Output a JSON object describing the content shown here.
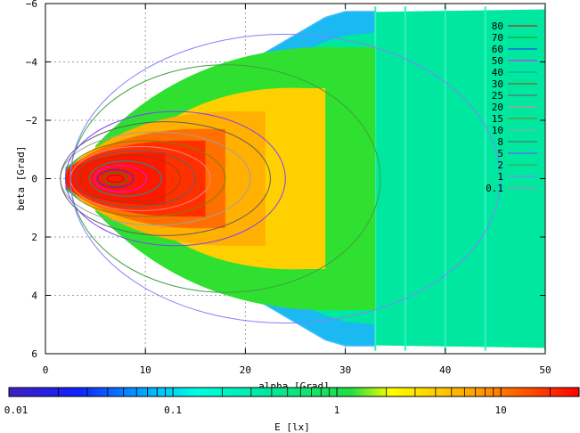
{
  "chart_data": {
    "type": "heatmap",
    "xlabel": "alpha [Grad]",
    "ylabel": "beta [Grad]",
    "colorbar_label": "E [lx]",
    "xlim": [
      0,
      50
    ],
    "ylim": [
      6,
      -6
    ],
    "x_ticks": [
      0,
      10,
      20,
      30,
      40,
      50
    ],
    "y_ticks": [
      6,
      4,
      2,
      0,
      -2,
      -4,
      -6
    ],
    "x_tick_labels": [
      "0",
      "10",
      "20",
      "30",
      "40",
      "50"
    ],
    "y_tick_labels": [
      "6",
      "4",
      "2",
      "0",
      "−2",
      "−4",
      "−6"
    ],
    "colorbar_scale": "log",
    "colorbar_range": [
      0.01,
      30
    ],
    "colorbar_ticks": [
      0.01,
      0.1,
      1,
      10
    ],
    "colorbar_tick_labels": [
      "0.01",
      "0.1",
      "1",
      "10"
    ],
    "grid": true,
    "legend_position": "top-right",
    "contour_levels": [
      "80",
      "70",
      "60",
      "50",
      "40",
      "30",
      "25",
      "20",
      "15",
      "10",
      "8",
      "5",
      "2",
      "1",
      "0.1"
    ],
    "contour_colors": [
      "#d00000",
      "#00a000",
      "#2a2aff",
      "#ff00ff",
      "#00a0a0",
      "#a04000",
      "#606060",
      "#ff8080",
      "#808000",
      "#a0a0a0",
      "#606060",
      "#8040ff",
      "#40a040",
      "#8080ff",
      "#c080c0"
    ],
    "beam": {
      "apex": [
        2,
        0
      ],
      "upper_edge": [
        [
          2,
          -0.4
        ],
        [
          10,
          -2.1
        ],
        [
          20,
          -3.9
        ],
        [
          28,
          -5.5
        ],
        [
          30,
          -5.7
        ],
        [
          50,
          -5.8
        ]
      ],
      "lower_edge": [
        [
          2,
          0.4
        ],
        [
          10,
          2.1
        ],
        [
          20,
          3.9
        ],
        [
          28,
          5.5
        ],
        [
          30,
          5.7
        ],
        [
          50,
          5.8
        ]
      ],
      "peak": [
        7,
        0
      ],
      "strips_x": [
        33,
        36,
        40,
        44,
        50
      ],
      "illuminance_zones": [
        {
          "level": "E >= 10",
          "color": "#ff3000",
          "x_extent": [
            2,
            16
          ],
          "half_height_max": 1.3
        },
        {
          "level": "3 <= E < 10",
          "color": "#ffd000",
          "x_extent": [
            8,
            28
          ],
          "half_height_max": 3.1
        },
        {
          "level": "1 <= E < 3",
          "color": "#30e030",
          "x_extent": [
            5,
            33
          ],
          "half_height_max": 4.5
        },
        {
          "level": "0.1 <= E < 1",
          "color": "#00e8a0",
          "x_extent": [
            2,
            50
          ],
          "half_height_max": 5.8
        }
      ]
    }
  }
}
